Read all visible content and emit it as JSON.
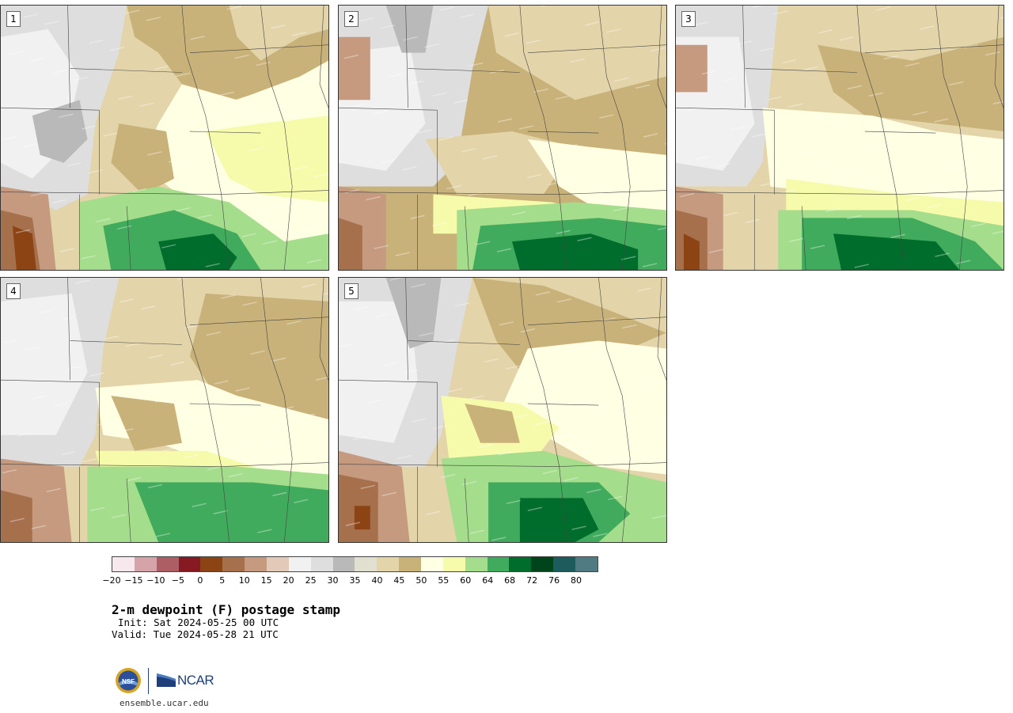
{
  "panels": [
    {
      "label": "1"
    },
    {
      "label": "2"
    },
    {
      "label": "3"
    },
    {
      "label": "4"
    },
    {
      "label": "5"
    }
  ],
  "colorbar": {
    "colors": [
      "#f6e8ec",
      "#d4a4aa",
      "#ad5e65",
      "#861a22",
      "#8c4414",
      "#a7704d",
      "#c59a7f",
      "#e2c9b8",
      "#f1f1f1",
      "#dedede",
      "#b9b9b9",
      "#e1e0d0",
      "#e3d4aa",
      "#c9b27a",
      "#ffffe3",
      "#f6fbac",
      "#a4dd8b",
      "#41ab5d",
      "#006d2c",
      "#00441b",
      "#1c5c5c",
      "#507b82"
    ],
    "tick_labels": [
      "-20",
      "-15",
      "-10",
      "-5",
      "0",
      "5",
      "10",
      "15",
      "20",
      "25",
      "30",
      "35",
      "40",
      "45",
      "50",
      "55",
      "60",
      "64",
      "68",
      "72",
      "76",
      "80"
    ]
  },
  "title": "2-m dewpoint (F) postage stamp",
  "init_line": "Init: Sat 2024-05-25 00 UTC",
  "valid_line": "Valid: Tue 2024-05-28 21 UTC",
  "logo": {
    "nsf": "NSF",
    "ncar": "NCAR"
  },
  "url": "ensemble.ucar.edu"
}
